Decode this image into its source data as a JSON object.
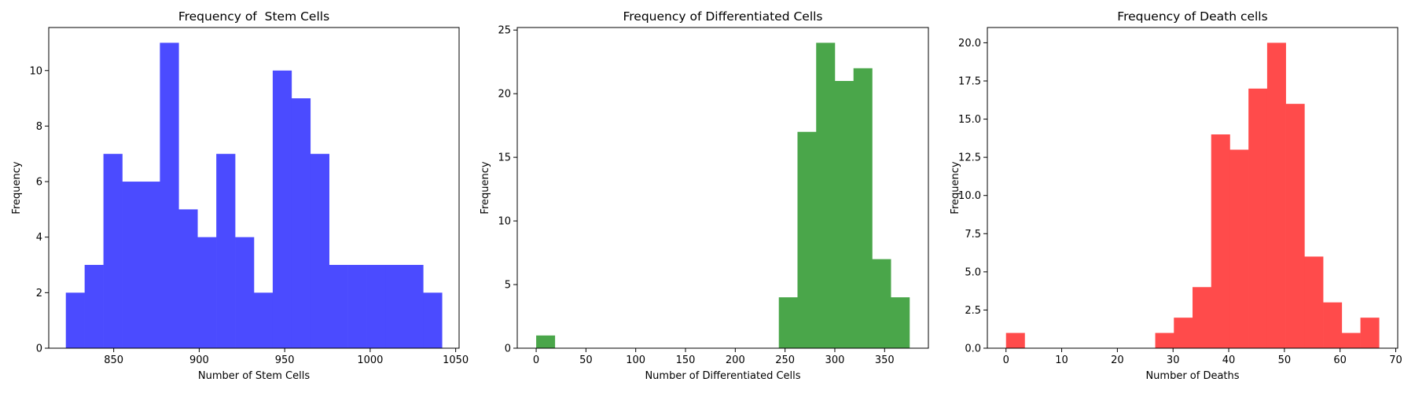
{
  "chart_data": [
    {
      "type": "bar",
      "title": "Frequency of  Stem Cells",
      "xlabel": "Number of Stem Cells",
      "ylabel": "Frequency",
      "color": "#4B4BFF",
      "xlim": [
        812,
        1052
      ],
      "ylim": [
        0,
        11.55
      ],
      "xticks": [
        850,
        900,
        950,
        1000,
        1050
      ],
      "yticks": [
        0,
        2,
        4,
        6,
        8,
        10
      ],
      "bin_edges": [
        822,
        833,
        844,
        855,
        866,
        877,
        888,
        899,
        910,
        921,
        932,
        943,
        954,
        965,
        976,
        987,
        998,
        1009,
        1020,
        1031,
        1042
      ],
      "values": [
        2,
        3,
        7,
        6,
        6,
        11,
        5,
        4,
        7,
        4,
        2,
        10,
        9,
        7,
        3,
        3,
        3,
        3,
        3,
        2
      ]
    },
    {
      "type": "bar",
      "title": "Frequency of Differentiated Cells",
      "xlabel": "Number of Differentiated Cells",
      "ylabel": "Frequency",
      "color": "#4AA64A",
      "xlim": [
        -19,
        394
      ],
      "ylim": [
        0,
        25.2
      ],
      "xticks": [
        0,
        50,
        100,
        150,
        200,
        250,
        300,
        350
      ],
      "yticks": [
        0,
        5,
        10,
        15,
        20,
        25
      ],
      "bin_edges": [
        0,
        18.75,
        37.5,
        56.25,
        75,
        93.75,
        112.5,
        131.25,
        150,
        168.75,
        187.5,
        206.25,
        225,
        243.75,
        262.5,
        281.25,
        300,
        318.75,
        337.5,
        356.25,
        375
      ],
      "values": [
        1,
        0,
        0,
        0,
        0,
        0,
        0,
        0,
        0,
        0,
        0,
        0,
        0,
        4,
        17,
        24,
        21,
        22,
        7,
        4
      ]
    },
    {
      "type": "bar",
      "title": "Frequency of Death cells",
      "xlabel": "Number of Deaths",
      "ylabel": "Frequency",
      "color": "#FF4B4B",
      "xlim": [
        -3.35,
        70.35
      ],
      "ylim": [
        0,
        21
      ],
      "xticks": [
        0,
        10,
        20,
        30,
        40,
        50,
        60,
        70
      ],
      "yticks": [
        0.0,
        2.5,
        5.0,
        7.5,
        10.0,
        12.5,
        15.0,
        17.5,
        20.0
      ],
      "ytick_labels": [
        "0.0",
        "2.5",
        "5.0",
        "7.5",
        "10.0",
        "12.5",
        "15.0",
        "17.5",
        "20.0"
      ],
      "bin_edges": [
        0,
        3.35,
        6.7,
        10.05,
        13.4,
        16.75,
        20.1,
        23.45,
        26.8,
        30.15,
        33.5,
        36.85,
        40.2,
        43.55,
        46.9,
        50.25,
        53.6,
        56.95,
        60.3,
        63.65,
        67
      ],
      "values": [
        1,
        0,
        0,
        0,
        0,
        0,
        0,
        0,
        1,
        2,
        4,
        14,
        13,
        17,
        20,
        16,
        6,
        3,
        1,
        2
      ]
    }
  ]
}
